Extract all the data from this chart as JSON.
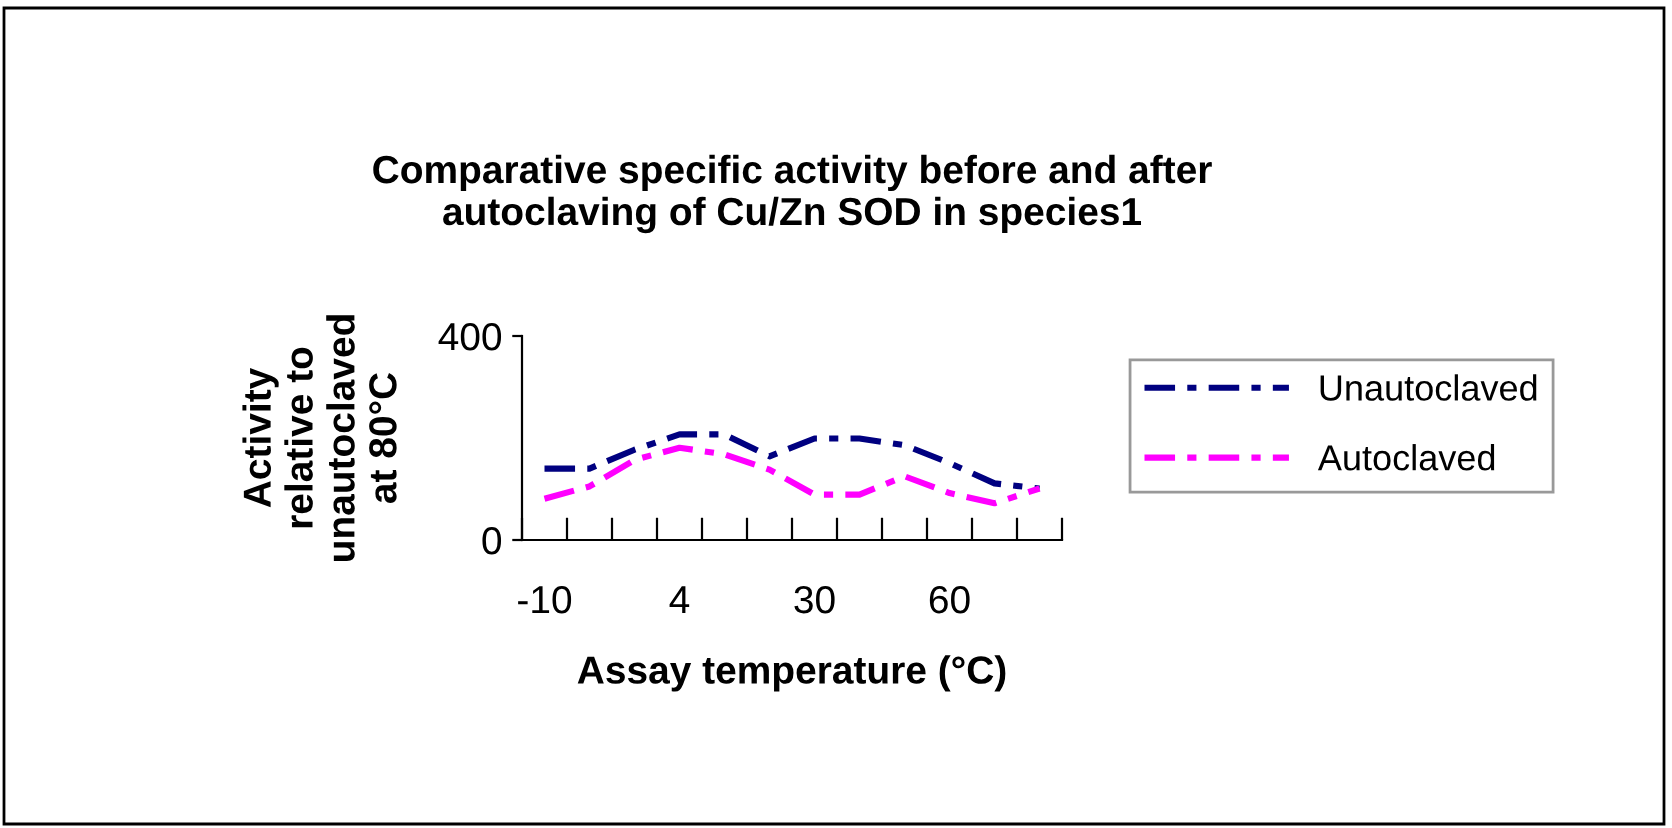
{
  "chart_data": {
    "type": "line",
    "title": "Comparative specific activity before and after\nautoclaving of Cu/Zn SOD in species1",
    "xlabel": "Assay temperature (°C)",
    "ylabel": "Activity\nrelative to\nunautoclaved\nat 80°C",
    "categories": [
      "-10",
      null,
      null,
      "4",
      null,
      null,
      "30",
      null,
      null,
      "60",
      null,
      null
    ],
    "series": [
      {
        "name": "Unautoclaved",
        "color": "#000080",
        "values": [
          140,
          140,
          177,
          207,
          207,
          164,
          199,
          199,
          186,
          151,
          111,
          101
        ]
      },
      {
        "name": "Autoclaved",
        "color": "#ff00ff",
        "values": [
          81,
          105,
          157,
          181,
          168,
          138,
          89,
          89,
          125,
          92,
          72,
          101
        ]
      }
    ],
    "ylim": [
      0,
      400
    ],
    "yticks": [
      0,
      400
    ],
    "line_style": "dashdot",
    "marker": "none",
    "grid": false,
    "legend": "right"
  }
}
